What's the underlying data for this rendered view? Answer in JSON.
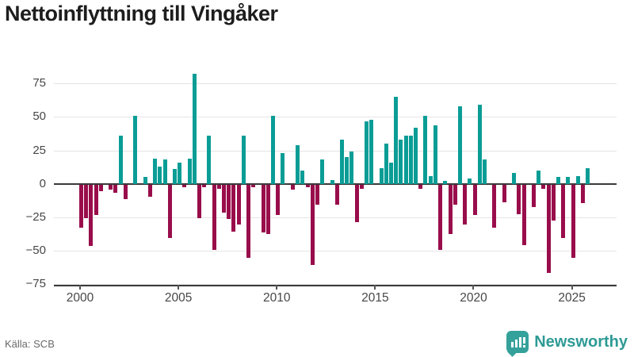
{
  "title": "Nettoinflyttning till Vingåker",
  "footer": {
    "source": "Källa: SCB",
    "brand": "Newsworthy"
  },
  "chart_data": {
    "type": "bar",
    "title": "Nettoinflyttning till Vingåker",
    "frequency": "quarterly",
    "start_period": "2000 Q1",
    "end_period": "2025 Q4",
    "x_tick_labels": [
      "2000",
      "2005",
      "2010",
      "2015",
      "2020",
      "2025"
    ],
    "y_tick_values": [
      75,
      50,
      25,
      0,
      -25,
      -50,
      -75
    ],
    "ylim": [
      -85,
      92
    ],
    "grid": true,
    "legend": false,
    "colors": {
      "positive": "#0a9d96",
      "negative": "#990d4b"
    },
    "series": [
      {
        "name": "Nettoinflyttning",
        "values": [
          -32,
          -25,
          -46,
          -23,
          -5,
          0,
          -4,
          -6,
          36,
          -11,
          0,
          51,
          0,
          5,
          -9,
          19,
          13,
          18,
          -40,
          11,
          16,
          -2,
          19,
          82,
          -25,
          -2,
          36,
          -49,
          -3,
          -21,
          -26,
          -35,
          -30,
          36,
          -55,
          -2,
          0,
          -36,
          -37,
          51,
          -23,
          23,
          0,
          -4,
          29,
          10,
          -2,
          -60,
          -15,
          18,
          0,
          3,
          -15,
          33,
          20,
          24,
          -28,
          -3,
          47,
          48,
          0,
          12,
          30,
          16,
          65,
          33,
          36,
          36,
          42,
          -3,
          51,
          6,
          44,
          -49,
          2,
          -37,
          -15,
          58,
          -30,
          4,
          -23,
          59,
          18,
          0,
          -32,
          0,
          -13,
          0,
          8,
          -22,
          -45,
          0,
          -17,
          10,
          -3,
          -66,
          -27,
          5,
          -40,
          5,
          -55,
          6,
          -14,
          12
        ]
      }
    ]
  }
}
